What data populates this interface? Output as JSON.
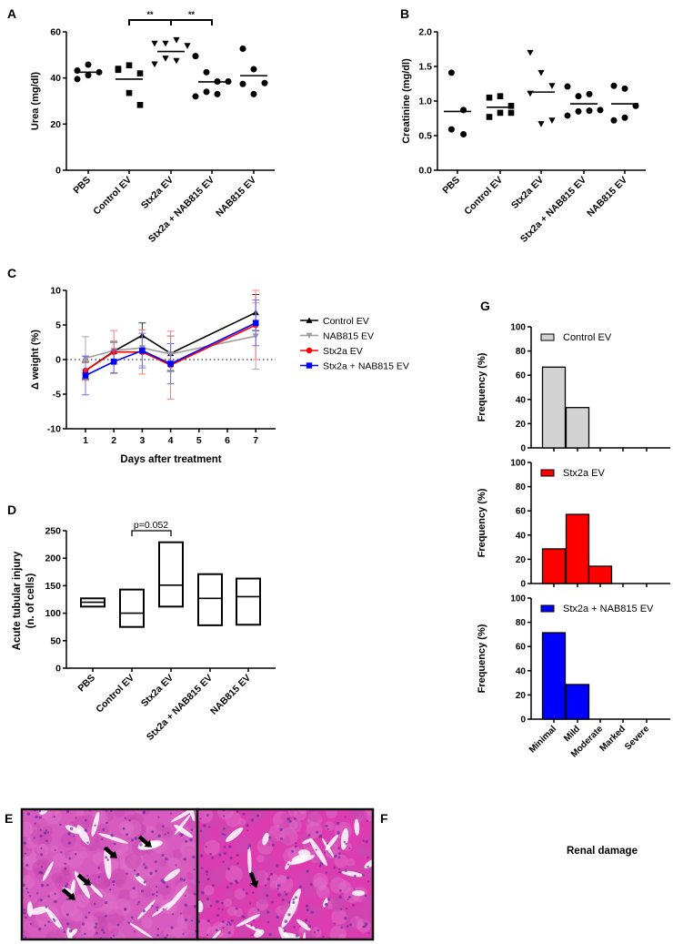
{
  "panel_letters": {
    "A": "A",
    "B": "B",
    "C": "C",
    "D": "D",
    "E": "E",
    "F": "F",
    "G": "G"
  },
  "chart_data": [
    {
      "id": "A",
      "type": "scatter",
      "ylabel": "Urea (mg/dl)",
      "ylim": [
        0,
        60
      ],
      "yticks": [
        "0",
        "20",
        "40",
        "60"
      ],
      "categories": [
        "PBS",
        "Control EV",
        "Stx2a EV",
        "Stx2a + NAB815 EV",
        "NAB815 EV"
      ],
      "markers": [
        "circle",
        "square",
        "triangle-down",
        "circle",
        "circle"
      ],
      "points": [
        [
          43.2,
          45.8,
          42.5,
          39.5,
          41.2
        ],
        [
          44.0,
          45.5,
          42.0,
          43.5,
          33.5,
          28.3
        ],
        [
          55.0,
          55.0,
          56.5,
          54.0,
          46.0,
          48.5,
          47.5
        ],
        [
          49.5,
          42.5,
          38.5,
          38.5,
          32.0,
          34.0,
          33.0
        ],
        [
          52.7,
          43.8,
          37.8,
          37.4,
          33.0
        ]
      ],
      "means": [
        42.5,
        39.5,
        51.5,
        38.3,
        41.0
      ],
      "significance": [
        {
          "from": "Control EV",
          "to": "Stx2a EV",
          "label": "**"
        },
        {
          "from": "Stx2a EV",
          "to": "Stx2a + NAB815 EV",
          "label": "**"
        }
      ]
    },
    {
      "id": "B",
      "type": "scatter",
      "ylabel": "Creatinine (mg/dl)",
      "ylim": [
        0,
        2
      ],
      "yticks": [
        "0.0",
        "0.5",
        "1.0",
        "1.5",
        "2.0"
      ],
      "categories": [
        "PBS",
        "Control EV",
        "Stx2a EV",
        "Stx2a + NAB815 EV",
        "NAB815 EV"
      ],
      "markers": [
        "circle",
        "square",
        "triangle-down",
        "circle",
        "circle"
      ],
      "points": [
        [
          1.41,
          0.87,
          0.59,
          0.52
        ],
        [
          1.05,
          1.07,
          0.93,
          0.77,
          0.83,
          0.83
        ],
        [
          1.7,
          1.41,
          1.22,
          1.11,
          0.67,
          0.72
        ],
        [
          1.21,
          1.07,
          1.1,
          0.87,
          0.79,
          0.85,
          0.86
        ],
        [
          1.22,
          1.18,
          0.93,
          0.72,
          0.76
        ]
      ],
      "means": [
        0.85,
        0.91,
        1.13,
        0.96,
        0.96
      ]
    },
    {
      "id": "C",
      "type": "line",
      "xlabel": "Days after treatment",
      "ylabel": "Δ weight (%)",
      "ylim": [
        -10,
        10
      ],
      "xlim": [
        0.5,
        7.5
      ],
      "yticks": [
        "-10",
        "-5",
        "0",
        "5",
        "10"
      ],
      "xticks": [
        "1",
        "2",
        "3",
        "4",
        "5",
        "6",
        "7"
      ],
      "x": [
        1,
        2,
        3,
        4,
        7
      ],
      "legend_position": "right",
      "series": [
        {
          "name": "Control EV",
          "color": "#000000",
          "errcolor": "#333333",
          "marker": "triangle-up",
          "values": [
            -1.6,
            1.2,
            3.5,
            0.9,
            6.8
          ],
          "errors": [
            1.2,
            1.3,
            1.8,
            2.5,
            2.6
          ]
        },
        {
          "name": "NAB815 EV",
          "color": "#9e9e9e",
          "errcolor": "#a8a8a8",
          "marker": "triangle-down",
          "values": [
            0.2,
            1.3,
            1.7,
            0.8,
            3.4
          ],
          "errors": [
            3.1,
            1.4,
            2.6,
            2.6,
            4.8
          ]
        },
        {
          "name": "Stx2a EV",
          "color": "#ff0000",
          "errcolor": "#f08080",
          "marker": "circle",
          "values": [
            -1.6,
            1.1,
            1.1,
            -0.8,
            5.0
          ],
          "errors": [
            1.4,
            3.1,
            3.2,
            4.9,
            5.0
          ]
        },
        {
          "name": "Stx2a + NAB815 EV",
          "color": "#0000ff",
          "errcolor": "#6f6ff5",
          "marker": "square",
          "values": [
            -2.3,
            -0.3,
            1.3,
            -0.6,
            5.3
          ],
          "errors": [
            2.8,
            1.6,
            2.5,
            2.9,
            3.3
          ]
        }
      ]
    },
    {
      "id": "D",
      "type": "bar",
      "ylabel": [
        "Acute tubular injury",
        "(n. of cells)"
      ],
      "ylim": [
        0,
        250
      ],
      "yticks": [
        "0",
        "50",
        "100",
        "150",
        "200",
        "250"
      ],
      "categories": [
        "PBS",
        "Control EV",
        "Stx2a EV",
        "Stx2a + NAB815 EV",
        "NAB815 EV"
      ],
      "min": [
        112,
        75,
        112,
        78,
        79
      ],
      "max": [
        127,
        143,
        229,
        171,
        163
      ],
      "mean": [
        120,
        100,
        151,
        127,
        130
      ],
      "annotation": {
        "from": "Control EV",
        "to": "Stx2a EV",
        "label": "p=0.052"
      }
    },
    {
      "id": "G",
      "type": "bar",
      "xlabel": "Renal damage",
      "ylabel": "Frequency (%)",
      "ylim": [
        0,
        100
      ],
      "yticks": [
        "0",
        "20",
        "40",
        "60",
        "80",
        "100"
      ],
      "categories": [
        "Minimal",
        "Mild",
        "Moderate",
        "Marked",
        "Severe"
      ],
      "series": [
        {
          "name": "Control EV",
          "color": "#d3d3d3",
          "values": [
            66.7,
            33.3,
            0,
            0,
            0
          ]
        },
        {
          "name": "Stx2a EV",
          "color": "#ff0000",
          "values": [
            28.6,
            57.1,
            14.3,
            0,
            0
          ]
        },
        {
          "name": "Stx2a + NAB815 EV",
          "color": "#0000ff",
          "values": [
            71.4,
            28.6,
            0,
            0,
            0
          ]
        }
      ]
    }
  ]
}
